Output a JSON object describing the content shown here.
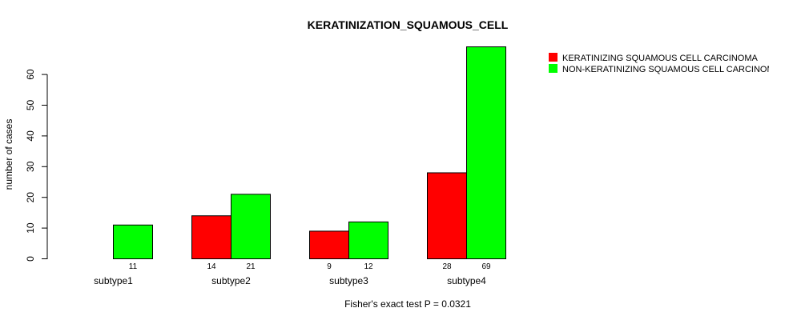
{
  "chart_data": {
    "type": "bar",
    "title": "KERATINIZATION_SQUAMOUS_CELL",
    "ylabel": "number of cases",
    "xlabel": "",
    "ylim": [
      0,
      69
    ],
    "yticks": [
      0,
      10,
      20,
      30,
      40,
      50,
      60
    ],
    "categories": [
      "subtype1",
      "subtype2",
      "subtype3",
      "subtype4"
    ],
    "series": [
      {
        "name": "KERATINIZING SQUAMOUS CELL CARCINOMA",
        "color": "#ff0000",
        "values": [
          0,
          14,
          9,
          28
        ]
      },
      {
        "name": "NON-KERATINIZING SQUAMOUS CELL CARCINOMA",
        "color": "#00ff00",
        "values": [
          11,
          21,
          12,
          69
        ]
      }
    ],
    "count_labels": [
      [
        "",
        "11"
      ],
      [
        "14",
        "21"
      ],
      [
        "9",
        "12"
      ],
      [
        "28",
        "69"
      ]
    ],
    "footnote": "Fisher's exact test P = 0.0321",
    "legend_position": "top-right"
  }
}
